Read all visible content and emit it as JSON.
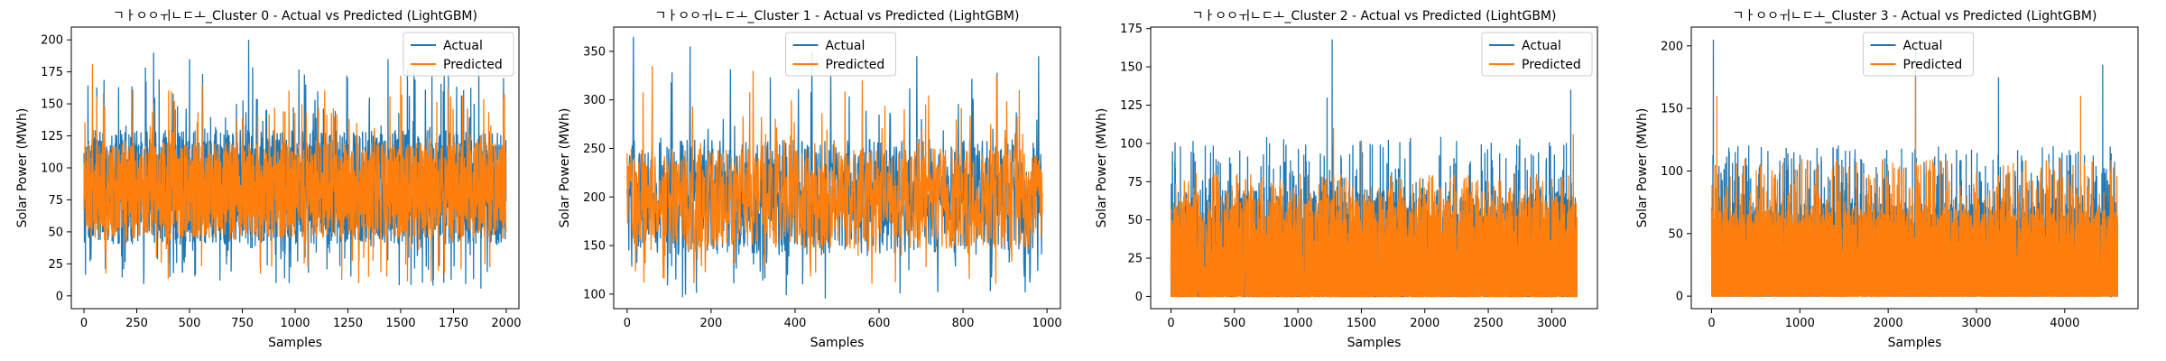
{
  "chart_data": [
    {
      "type": "line",
      "title": "ㄱㅏㅇㅇㅟㄴㄷㅗ_Cluster 0 - Actual vs Predicted (LightGBM)",
      "xlabel": "Samples",
      "ylabel": "Solar Power (MWh)",
      "xlim": [
        -60,
        2060
      ],
      "ylim": [
        -10,
        210
      ],
      "xticks": [
        0,
        250,
        500,
        750,
        1000,
        1250,
        1500,
        1750,
        2000
      ],
      "yticks": [
        0,
        25,
        50,
        75,
        100,
        125,
        150,
        175,
        200
      ],
      "legend": "top-right",
      "n_samples": 2000,
      "series": [
        {
          "name": "Actual",
          "color": "#1f77b4",
          "typical_range": [
            40,
            130
          ],
          "min": 5,
          "max": 200,
          "peaks": [
            [
              330,
              190
            ],
            [
              500,
              185
            ],
            [
              780,
              200
            ],
            [
              1440,
              185
            ],
            [
              1870,
              183
            ]
          ]
        },
        {
          "name": "Predicted",
          "color": "#ff7f0e",
          "typical_range": [
            45,
            120
          ],
          "min": 10,
          "max": 181,
          "peaks": [
            [
              40,
              181
            ],
            [
              560,
              165
            ],
            [
              1500,
              172
            ]
          ]
        }
      ]
    },
    {
      "type": "line",
      "title": "ㄱㅏㅇㅇㅟㄴㄷㅗ_Cluster 1 - Actual vs Predicted (LightGBM)",
      "xlabel": "Samples",
      "ylabel": "Solar Power (MWh)",
      "xlim": [
        -32,
        1032
      ],
      "ylim": [
        85,
        375
      ],
      "xticks": [
        0,
        200,
        400,
        600,
        800,
        1000
      ],
      "yticks": [
        100,
        150,
        200,
        250,
        300,
        350
      ],
      "legend": "top-center",
      "n_samples": 990,
      "series": [
        {
          "name": "Actual",
          "color": "#1f77b4",
          "typical_range": [
            140,
            260
          ],
          "min": 95,
          "max": 365,
          "peaks": [
            [
              15,
              365
            ],
            [
              150,
              355
            ],
            [
              440,
              350
            ],
            [
              690,
              345
            ],
            [
              980,
              345
            ]
          ]
        },
        {
          "name": "Predicted",
          "color": "#ff7f0e",
          "typical_range": [
            145,
            250
          ],
          "min": 110,
          "max": 340,
          "peaks": [
            [
              60,
              335
            ],
            [
              300,
              330
            ],
            [
              560,
              320
            ],
            [
              880,
              325
            ]
          ]
        }
      ]
    },
    {
      "type": "line",
      "title": "ㄱㅏㅇㅇㅟㄴㄷㅗ_Cluster 2 - Actual vs Predicted (LightGBM)",
      "xlabel": "Samples",
      "ylabel": "Solar Power (MWh)",
      "xlim": [
        -160,
        3360
      ],
      "ylim": [
        -8,
        176
      ],
      "xticks": [
        0,
        500,
        1000,
        1500,
        2000,
        2500,
        3000
      ],
      "yticks": [
        0,
        25,
        50,
        75,
        100,
        125,
        150,
        175
      ],
      "legend": "top-right",
      "n_samples": 3200,
      "series": [
        {
          "name": "Actual",
          "color": "#1f77b4",
          "typical_range": [
            0,
            70
          ],
          "min": 0,
          "max": 168,
          "peaks": [
            [
              1270,
              168
            ],
            [
              1230,
              130
            ],
            [
              3150,
              135
            ],
            [
              1500,
              100
            ]
          ]
        },
        {
          "name": "Predicted",
          "color": "#ff7f0e",
          "typical_range": [
            0,
            65
          ],
          "min": 0,
          "max": 110,
          "peaks": [
            [
              1280,
              110
            ],
            [
              1500,
              102
            ],
            [
              3170,
              106
            ]
          ]
        }
      ]
    },
    {
      "type": "line",
      "title": "ㄱㅏㅇㅇㅟㄴㄷㅗ_Cluster 3 - Actual vs Predicted (LightGBM)",
      "xlabel": "Samples",
      "ylabel": "Solar Power (MWh)",
      "xlim": [
        -230,
        4830
      ],
      "ylim": [
        -10,
        215
      ],
      "xticks": [
        0,
        1000,
        2000,
        3000,
        4000
      ],
      "yticks": [
        0,
        50,
        100,
        150,
        200
      ],
      "legend": "top-center",
      "n_samples": 4600,
      "series": [
        {
          "name": "Actual",
          "color": "#1f77b4",
          "typical_range": [
            0,
            75
          ],
          "min": 0,
          "max": 205,
          "peaks": [
            [
              20,
              205
            ],
            [
              2310,
              200
            ],
            [
              4430,
              185
            ],
            [
              3250,
              175
            ]
          ]
        },
        {
          "name": "Predicted",
          "color": "#ff7f0e",
          "typical_range": [
            0,
            70
          ],
          "min": 0,
          "max": 185,
          "peaks": [
            [
              60,
              160
            ],
            [
              2310,
              185
            ],
            [
              4180,
              160
            ]
          ]
        }
      ]
    }
  ]
}
